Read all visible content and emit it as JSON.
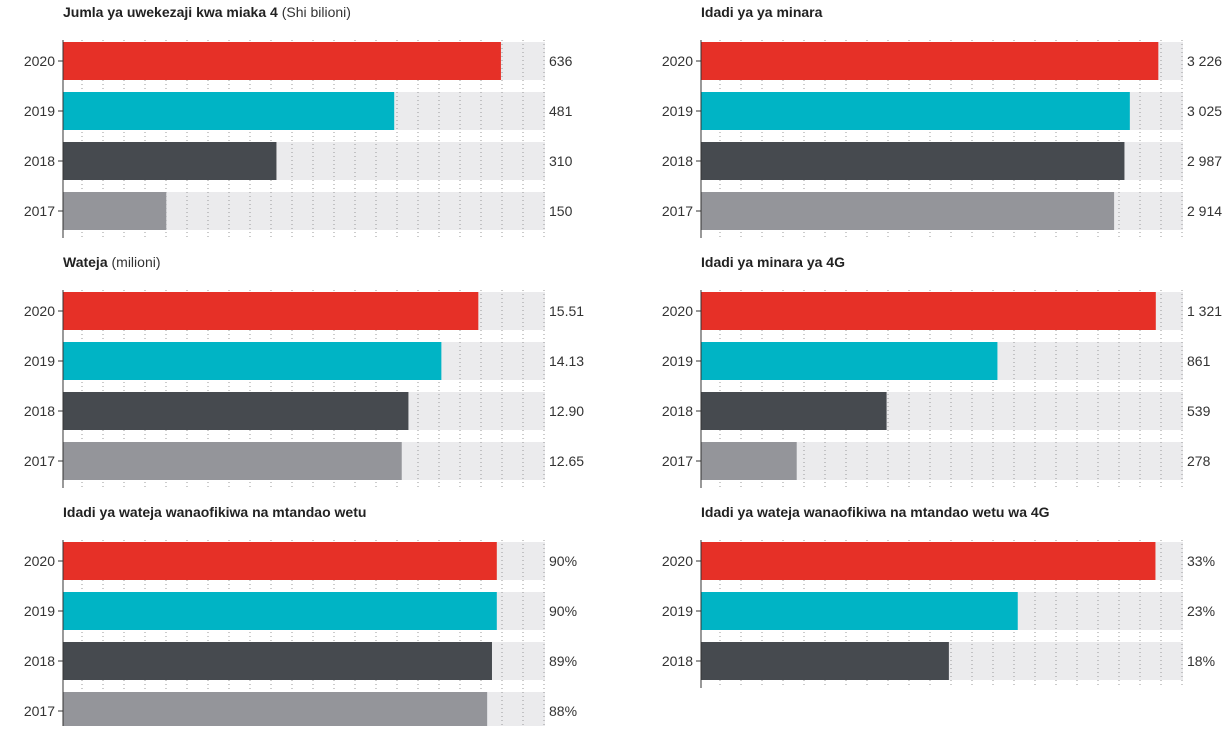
{
  "colors": {
    "year_2020": "#e63027",
    "year_2019": "#00b4c5",
    "year_2018": "#464a4f",
    "year_2017": "#94959a",
    "track": "#ebebed"
  },
  "chart_data": [
    {
      "type": "bar",
      "orientation": "horizontal",
      "title": "Jumla ya uwekezaji kwa miaka 4",
      "subtitle": "(Shi bilioni)",
      "categories": [
        "2020",
        "2019",
        "2018",
        "2017"
      ],
      "values": [
        636,
        481,
        310,
        150
      ],
      "value_labels": [
        "636",
        "481",
        "310",
        "150"
      ],
      "xlim": [
        0,
        700
      ]
    },
    {
      "type": "bar",
      "orientation": "horizontal",
      "title": "Idadi ya ya minara",
      "subtitle": "",
      "categories": [
        "2020",
        "2019",
        "2018",
        "2017"
      ],
      "values": [
        3226,
        3025,
        2987,
        2914
      ],
      "value_labels": [
        "3 226",
        "3 025",
        "2 987",
        "2 914"
      ],
      "xlim": [
        0,
        3400
      ]
    },
    {
      "type": "bar",
      "orientation": "horizontal",
      "title": "Wateja",
      "subtitle": "(milioni)",
      "categories": [
        "2020",
        "2019",
        "2018",
        "2017"
      ],
      "values": [
        15.51,
        14.13,
        12.9,
        12.65
      ],
      "value_labels": [
        "15.51",
        "14.13",
        "12.90",
        "12.65"
      ],
      "xlim": [
        0,
        18
      ]
    },
    {
      "type": "bar",
      "orientation": "horizontal",
      "title": "Idadi ya minara ya 4G",
      "subtitle": "",
      "categories": [
        "2020",
        "2019",
        "2018",
        "2017"
      ],
      "values": [
        1321,
        861,
        539,
        278
      ],
      "value_labels": [
        "1 321",
        "861",
        "539",
        "278"
      ],
      "xlim": [
        0,
        1400
      ]
    },
    {
      "type": "bar",
      "orientation": "horizontal",
      "title": "Idadi ya wateja wanaofikiwa na mtandao wetu",
      "subtitle": "",
      "categories": [
        "2020",
        "2019",
        "2018",
        "2017"
      ],
      "values": [
        90,
        90,
        89,
        88
      ],
      "value_labels": [
        "90%",
        "90%",
        "89%",
        "88%"
      ],
      "xlim": [
        0,
        100
      ]
    },
    {
      "type": "bar",
      "orientation": "horizontal",
      "title": "Idadi ya wateja wanaofikiwa na mtandao wetu wa 4G",
      "subtitle": "",
      "categories": [
        "2020",
        "2019",
        "2018"
      ],
      "values": [
        33,
        23,
        18
      ],
      "value_labels": [
        "33%",
        "23%",
        "18%"
      ],
      "xlim": [
        0,
        35
      ]
    }
  ]
}
